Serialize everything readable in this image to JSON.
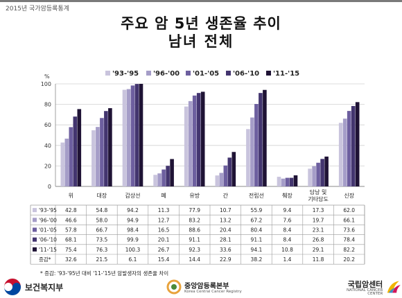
{
  "report_label": "2015년 국가암등록통계",
  "title_line1": "주요 암 5년 생존율 추이",
  "title_line2": "남녀 전체",
  "footnote": "* 증감: '93-'95년 대비 '11-'15년 암발생자의 생존율 차이",
  "footer": {
    "ministry": "보건복지부",
    "registry": "중앙암등록본부",
    "registry_en": "Korea Central Cancer Registry",
    "center": "국립암센터",
    "center_en": "NATIONAL CANCER CENTER"
  },
  "chart_data": {
    "type": "bar",
    "y_unit": "%",
    "ylim": [
      0,
      100
    ],
    "yticks": [
      0,
      20,
      40,
      60,
      80,
      100
    ],
    "grid": true,
    "legend_position": "top",
    "categories": [
      "위",
      "대장",
      "갑상선",
      "폐",
      "유방",
      "간",
      "전립선",
      "췌장",
      "담낭 및 기타담도",
      "신장"
    ],
    "series": [
      {
        "name": "'93-'95",
        "color": "#c9c4dd",
        "values": [
          42.8,
          54.8,
          94.2,
          11.3,
          77.9,
          10.7,
          55.9,
          9.4,
          17.3,
          62.0
        ]
      },
      {
        "name": "'96-'00",
        "color": "#a59dc8",
        "values": [
          46.6,
          58.0,
          94.9,
          12.7,
          83.2,
          13.2,
          67.2,
          7.6,
          19.7,
          66.1
        ]
      },
      {
        "name": "'01-'05",
        "color": "#6d5f9f",
        "values": [
          57.8,
          66.7,
          98.4,
          16.5,
          88.6,
          20.4,
          80.4,
          8.4,
          23.1,
          73.6
        ]
      },
      {
        "name": "'06-'10",
        "color": "#43356f",
        "values": [
          68.1,
          73.5,
          99.9,
          20.1,
          91.1,
          28.1,
          91.1,
          8.4,
          26.8,
          78.4
        ]
      },
      {
        "name": "'11-'15",
        "color": "#1f1335",
        "values": [
          75.4,
          76.3,
          100.3,
          26.7,
          92.3,
          33.6,
          94.1,
          10.8,
          29.1,
          82.2
        ]
      }
    ],
    "table_rows": [
      {
        "label": "'93-'95",
        "color": "#c9c4dd",
        "values": [
          "42.8",
          "54.8",
          "94.2",
          "11.3",
          "77.9",
          "10.7",
          "55.9",
          "9.4",
          "17.3",
          "62.0"
        ]
      },
      {
        "label": "'96-'00",
        "color": "#a59dc8",
        "values": [
          "46.6",
          "58.0",
          "94.9",
          "12.7",
          "83.2",
          "13.2",
          "67.2",
          "7.6",
          "19.7",
          "66.1"
        ]
      },
      {
        "label": "'01-'05",
        "color": "#6d5f9f",
        "values": [
          "57.8",
          "66.7",
          "98.4",
          "16.5",
          "88.6",
          "20.4",
          "80.4",
          "8.4",
          "23.1",
          "73.6"
        ]
      },
      {
        "label": "'06-'10",
        "color": "#43356f",
        "values": [
          "68.1",
          "73.5",
          "99.9",
          "20.1",
          "91.1",
          "28.1",
          "91.1",
          "8.4",
          "26.8",
          "78.4"
        ]
      },
      {
        "label": "'11-'15",
        "color": "#1f1335",
        "values": [
          "75.4",
          "76.3",
          "100.3",
          "26.7",
          "92.3",
          "33.6",
          "94.1",
          "10.8",
          "29.1",
          "82.2"
        ]
      },
      {
        "label": "증감*",
        "color": "",
        "values": [
          "32.6",
          "21.5",
          "6.1",
          "15.4",
          "14.4",
          "22.9",
          "38.2",
          "1.4",
          "11.8",
          "20.2"
        ]
      }
    ]
  }
}
